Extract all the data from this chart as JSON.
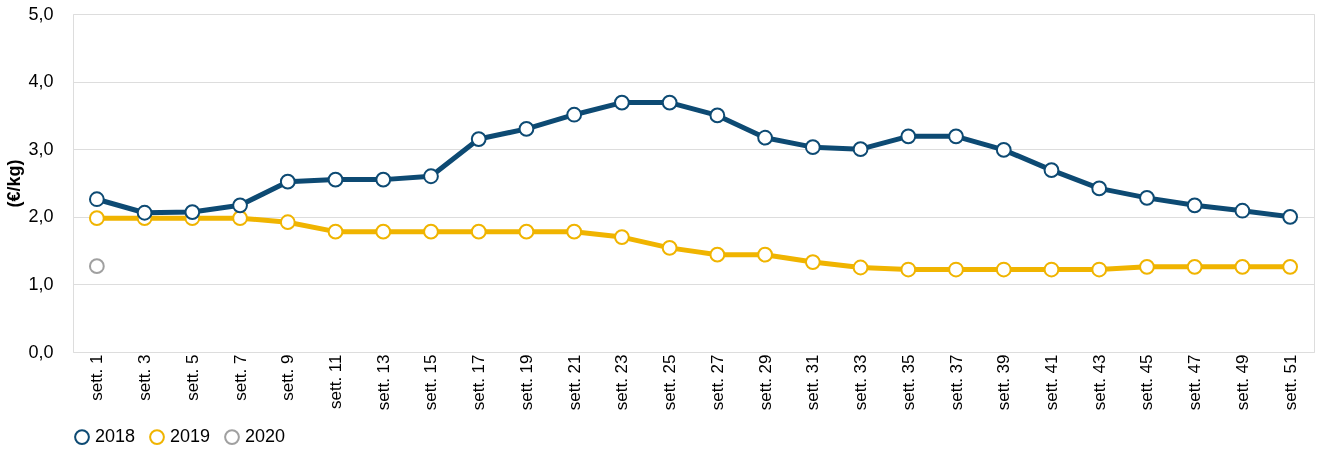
{
  "chart_data": {
    "type": "line",
    "ylabel": "(€/kg)",
    "categories": [
      "sett. 1",
      "sett. 3",
      "sett. 5",
      "sett. 7",
      "sett. 9",
      "sett. 11",
      "sett. 13",
      "sett. 15",
      "sett. 17",
      "sett. 19",
      "sett. 21",
      "sett. 23",
      "sett. 25",
      "sett. 27",
      "sett. 29",
      "sett. 31",
      "sett. 33",
      "sett. 35",
      "sett. 37",
      "sett. 39",
      "sett. 41",
      "sett. 43",
      "sett. 45",
      "sett. 47",
      "sett. 49",
      "sett. 51"
    ],
    "series": [
      {
        "name": "2018",
        "color": "#0d4a73",
        "values": [
          2.26,
          2.06,
          2.07,
          2.17,
          2.52,
          2.55,
          2.55,
          2.6,
          3.15,
          3.3,
          3.51,
          3.69,
          3.69,
          3.5,
          3.17,
          3.03,
          3.0,
          3.19,
          3.19,
          2.99,
          2.69,
          2.42,
          2.28,
          2.17,
          2.09,
          2.0
        ]
      },
      {
        "name": "2019",
        "color": "#f0b400",
        "values": [
          1.98,
          1.98,
          1.98,
          1.98,
          1.92,
          1.78,
          1.78,
          1.78,
          1.78,
          1.78,
          1.78,
          1.7,
          1.54,
          1.44,
          1.44,
          1.33,
          1.25,
          1.22,
          1.22,
          1.22,
          1.22,
          1.22,
          1.26,
          1.26,
          1.26,
          1.26
        ]
      },
      {
        "name": "2020",
        "color": "#a0a0a0",
        "values": [
          1.27,
          null,
          null,
          null,
          null,
          null,
          null,
          null,
          null,
          null,
          null,
          null,
          null,
          null,
          null,
          null,
          null,
          null,
          null,
          null,
          null,
          null,
          null,
          null,
          null,
          null
        ]
      }
    ],
    "ylim": [
      0,
      5
    ],
    "yticks": [
      {
        "value": 0,
        "label": "0,0"
      },
      {
        "value": 1,
        "label": "1,0"
      },
      {
        "value": 2,
        "label": "2,0"
      },
      {
        "value": 3,
        "label": "3,0"
      },
      {
        "value": 4,
        "label": "4,0"
      },
      {
        "value": 5,
        "label": "5,0"
      }
    ],
    "grid": "y",
    "legend": "bottom",
    "marker": "circle",
    "line_style": "solid"
  }
}
